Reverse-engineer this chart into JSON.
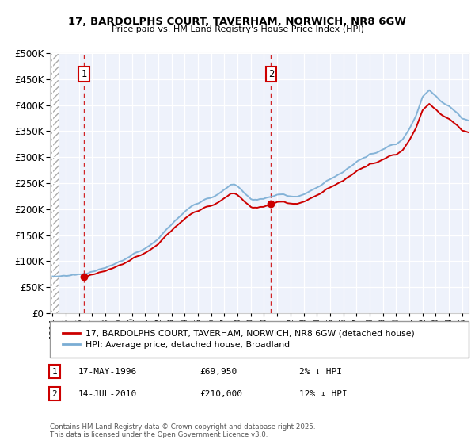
{
  "title1": "17, BARDOLPHS COURT, TAVERHAM, NORWICH, NR8 6GW",
  "title2": "Price paid vs. HM Land Registry's House Price Index (HPI)",
  "legend_line1": "17, BARDOLPHS COURT, TAVERHAM, NORWICH, NR8 6GW (detached house)",
  "legend_line2": "HPI: Average price, detached house, Broadland",
  "annotation1_date": "17-MAY-1996",
  "annotation1_price": "£69,950",
  "annotation1_hpi": "2% ↓ HPI",
  "annotation2_date": "14-JUL-2010",
  "annotation2_price": "£210,000",
  "annotation2_hpi": "12% ↓ HPI",
  "copyright": "Contains HM Land Registry data © Crown copyright and database right 2025.\nThis data is licensed under the Open Government Licence v3.0.",
  "property_color": "#cc0000",
  "hpi_color": "#7aadd4",
  "background_color": "#eef2fb",
  "sale1_t": 1996.38,
  "sale1_p": 69950,
  "sale2_t": 2010.54,
  "sale2_p": 210000,
  "ylim_max": 500000,
  "xlim_min": 1993.8,
  "xlim_max": 2025.5
}
